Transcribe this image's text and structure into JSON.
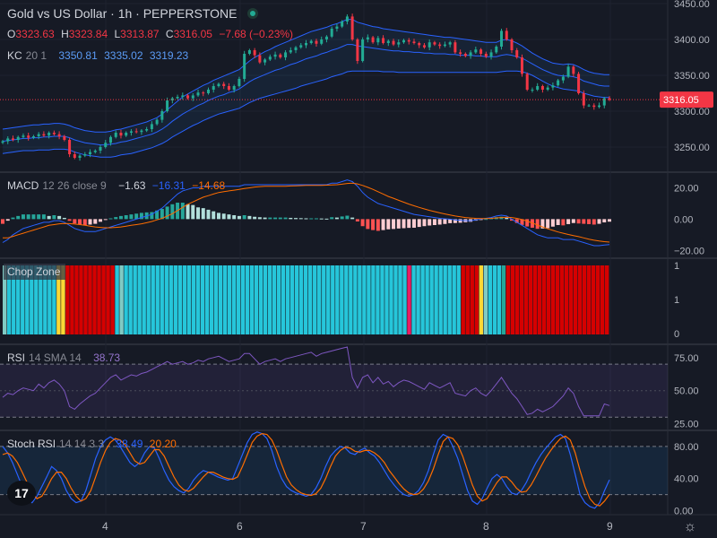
{
  "header": {
    "title": "Gold vs US Dollar · 1h · PEPPERSTONE",
    "ohlc": {
      "o_label": "O",
      "o": "3323.63",
      "h_label": "H",
      "h": "3323.84",
      "l_label": "L",
      "l": "3313.87",
      "c_label": "C",
      "c": "3316.05",
      "change": "−7.68 (−0.23%)"
    }
  },
  "kc_legend": {
    "name": "KC",
    "params": "20 1",
    "upper": "3350.81",
    "basis": "3335.02",
    "lower": "3319.23"
  },
  "macd_legend": {
    "name": "MACD",
    "params": "12 26 close 9",
    "hist": "−1.63",
    "macd": "−16.31",
    "signal": "−14.68"
  },
  "chop_legend": {
    "name": "Chop Zone"
  },
  "rsi_legend": {
    "name": "RSI",
    "params": "14 SMA 14",
    "value": "38.73"
  },
  "stoch_legend": {
    "name": "Stoch RSI",
    "params": "14 14 3 3",
    "k": "38.49",
    "d": "20.20"
  },
  "logo": {
    "text": "17"
  },
  "colors": {
    "up": "#22ab94",
    "down": "#f23645",
    "kc": "#2962ff",
    "macd": "#2962ff",
    "signal": "#ff6d00",
    "rsi": "#7e57c2",
    "stoch_k": "#2962ff",
    "stoch_d": "#ff6d00",
    "chop_turquoise": "#26c6da",
    "chop_red": "#d50000",
    "chop_yellow": "#fdd835",
    "chop_light_green": "#80cbc4",
    "chop_dark_green": "#26a69a",
    "chop_pink": "#e91e63"
  },
  "chart_data": [
    {
      "type": "candlestick",
      "title": "Gold vs US Dollar · 1h · PEPPERSTONE",
      "ylim": [
        3215,
        3455
      ],
      "y_ticks": [
        "3450.00",
        "3400.00",
        "3350.00",
        "3300.00",
        "3250.00"
      ],
      "x_ticks": [
        "4",
        "6",
        "7",
        "8",
        "9"
      ],
      "last_price": "3316.05",
      "close": [
        3258,
        3262,
        3260,
        3264,
        3266,
        3263,
        3265,
        3268,
        3266,
        3270,
        3268,
        3265,
        3260,
        3240,
        3235,
        3238,
        3240,
        3243,
        3245,
        3250,
        3256,
        3264,
        3270,
        3266,
        3270,
        3272,
        3271,
        3273,
        3275,
        3282,
        3288,
        3300,
        3315,
        3318,
        3320,
        3322,
        3318,
        3322,
        3326,
        3325,
        3330,
        3335,
        3338,
        3335,
        3330,
        3335,
        3345,
        3380,
        3385,
        3378,
        3368,
        3372,
        3376,
        3379,
        3375,
        3382,
        3385,
        3389,
        3392,
        3395,
        3398,
        3394,
        3400,
        3404,
        3415,
        3418,
        3425,
        3432,
        3400,
        3370,
        3400,
        3403,
        3396,
        3402,
        3395,
        3398,
        3393,
        3396,
        3399,
        3397,
        3395,
        3392,
        3389,
        3396,
        3393,
        3391,
        3393,
        3396,
        3382,
        3380,
        3377,
        3382,
        3386,
        3380,
        3376,
        3382,
        3390,
        3412,
        3400,
        3385,
        3375,
        3352,
        3330,
        3330,
        3335,
        3330,
        3333,
        3336,
        3343,
        3348,
        3362,
        3352,
        3325,
        3308,
        3308,
        3306,
        3308,
        3318,
        3316
      ],
      "kc_upper": [
        3275,
        3276,
        3277,
        3278,
        3279,
        3280,
        3281,
        3281,
        3282,
        3282,
        3283,
        3283,
        3282,
        3280,
        3277,
        3275,
        3273,
        3272,
        3271,
        3271,
        3271,
        3272,
        3274,
        3275,
        3277,
        3279,
        3281,
        3283,
        3285,
        3288,
        3291,
        3296,
        3302,
        3308,
        3314,
        3320,
        3324,
        3328,
        3332,
        3336,
        3339,
        3343,
        3346,
        3349,
        3352,
        3355,
        3358,
        3364,
        3370,
        3375,
        3379,
        3383,
        3386,
        3390,
        3393,
        3396,
        3399,
        3402,
        3405,
        3408,
        3411,
        3413,
        3415,
        3417,
        3420,
        3422,
        3425,
        3428,
        3428,
        3424,
        3422,
        3420,
        3418,
        3417,
        3415,
        3414,
        3413,
        3412,
        3411,
        3410,
        3409,
        3408,
        3407,
        3406,
        3405,
        3404,
        3403,
        3403,
        3402,
        3401,
        3400,
        3399,
        3398,
        3397,
        3396,
        3396,
        3396,
        3399,
        3400,
        3398,
        3395,
        3391,
        3386,
        3381,
        3377,
        3373,
        3370,
        3367,
        3366,
        3365,
        3366,
        3365,
        3362,
        3358,
        3355,
        3353,
        3352,
        3351,
        3351
      ],
      "kc_basis": [
        3258,
        3259,
        3260,
        3261,
        3262,
        3262,
        3263,
        3263,
        3264,
        3264,
        3265,
        3265,
        3265,
        3263,
        3260,
        3258,
        3256,
        3255,
        3254,
        3253,
        3253,
        3254,
        3255,
        3257,
        3258,
        3260,
        3262,
        3264,
        3266,
        3268,
        3271,
        3275,
        3280,
        3286,
        3291,
        3296,
        3300,
        3304,
        3308,
        3311,
        3315,
        3318,
        3321,
        3323,
        3326,
        3328,
        3331,
        3336,
        3341,
        3345,
        3348,
        3351,
        3354,
        3357,
        3359,
        3362,
        3365,
        3367,
        3370,
        3373,
        3375,
        3377,
        3380,
        3382,
        3385,
        3387,
        3390,
        3393,
        3393,
        3391,
        3390,
        3389,
        3388,
        3387,
        3386,
        3385,
        3384,
        3384,
        3383,
        3383,
        3382,
        3382,
        3381,
        3381,
        3380,
        3380,
        3380,
        3379,
        3379,
        3378,
        3378,
        3378,
        3377,
        3377,
        3376,
        3376,
        3376,
        3378,
        3379,
        3378,
        3376,
        3374,
        3370,
        3366,
        3362,
        3358,
        3355,
        3352,
        3350,
        3349,
        3349,
        3348,
        3346,
        3342,
        3340,
        3338,
        3336,
        3335,
        3335
      ],
      "kc_lower": [
        3241,
        3242,
        3243,
        3244,
        3245,
        3245,
        3245,
        3246,
        3246,
        3246,
        3247,
        3247,
        3247,
        3246,
        3243,
        3241,
        3239,
        3238,
        3237,
        3236,
        3236,
        3236,
        3237,
        3239,
        3240,
        3241,
        3243,
        3245,
        3247,
        3249,
        3252,
        3255,
        3259,
        3264,
        3268,
        3272,
        3276,
        3280,
        3283,
        3287,
        3290,
        3293,
        3296,
        3298,
        3300,
        3302,
        3304,
        3308,
        3312,
        3315,
        3318,
        3320,
        3322,
        3324,
        3326,
        3328,
        3330,
        3332,
        3335,
        3337,
        3339,
        3341,
        3343,
        3345,
        3348,
        3350,
        3352,
        3355,
        3356,
        3356,
        3356,
        3356,
        3356,
        3356,
        3355,
        3355,
        3355,
        3354,
        3354,
        3354,
        3354,
        3354,
        3354,
        3354,
        3354,
        3354,
        3354,
        3354,
        3354,
        3354,
        3354,
        3354,
        3354,
        3354,
        3354,
        3354,
        3354,
        3355,
        3356,
        3356,
        3356,
        3355,
        3353,
        3350,
        3346,
        3342,
        3338,
        3335,
        3333,
        3331,
        3330,
        3329,
        3328,
        3325,
        3323,
        3321,
        3320,
        3319,
        3319
      ]
    },
    {
      "type": "line",
      "title": "MACD 12 26 close 9",
      "ylim": [
        -25,
        30
      ],
      "y_ticks": [
        "20.00",
        "0.00",
        "−20.00"
      ],
      "macd": [
        -15,
        -13,
        -10,
        -8,
        -6,
        -5,
        -4,
        -3,
        -2,
        -2,
        -1,
        -1,
        -2,
        -4,
        -6,
        -7,
        -8,
        -8,
        -8,
        -7,
        -6,
        -5,
        -4,
        -3,
        -2,
        -1,
        0,
        1,
        2,
        3,
        5,
        7,
        10,
        13,
        16,
        18,
        19,
        20,
        20,
        21,
        21,
        21,
        21,
        21,
        21,
        21,
        21,
        22,
        22,
        22,
        22,
        22,
        22,
        22,
        22,
        22,
        22,
        22,
        22,
        22,
        22,
        22,
        22,
        22,
        23,
        23,
        24,
        25,
        24,
        21,
        17,
        14,
        12,
        10,
        9,
        8,
        7,
        6,
        5,
        4,
        3,
        2.5,
        2,
        1.5,
        1,
        0.5,
        0.2,
        0,
        -0.5,
        -0.8,
        -1,
        -1,
        -0.5,
        0,
        0.5,
        1,
        2,
        2.5,
        2,
        0,
        -2,
        -4,
        -6,
        -8,
        -10,
        -11,
        -12,
        -12,
        -12,
        -13,
        -13,
        -13,
        -14,
        -15,
        -16,
        -17,
        -17,
        -16.5,
        -16.31
      ],
      "signal": [
        -12,
        -12,
        -11,
        -10,
        -9,
        -8,
        -7,
        -6,
        -5,
        -4,
        -3.5,
        -3,
        -2.8,
        -2.9,
        -3.2,
        -3.5,
        -4,
        -4.5,
        -5,
        -5.3,
        -5.5,
        -5.5,
        -5.3,
        -5,
        -4.5,
        -4,
        -3.5,
        -3,
        -2.3,
        -1.5,
        -0.5,
        0.5,
        2,
        3.5,
        5.5,
        7.5,
        9.5,
        11,
        12.5,
        14,
        15,
        16,
        17,
        17.5,
        18,
        18.5,
        19,
        19.5,
        20,
        20.5,
        20.8,
        21,
        21,
        21,
        21,
        21,
        21.2,
        21.3,
        21.4,
        21.5,
        21.5,
        21.5,
        21.6,
        21.7,
        21.8,
        22,
        22.3,
        22.8,
        23,
        22.5,
        21.5,
        20.3,
        19,
        17.5,
        16,
        14.5,
        13.3,
        12,
        10.8,
        9.6,
        8.5,
        7.5,
        6.5,
        5.6,
        4.8,
        4,
        3.3,
        2.6,
        2,
        1.5,
        1,
        0.7,
        0.5,
        0.4,
        0.4,
        0.5,
        0.8,
        1,
        1.2,
        1,
        0.5,
        -0.3,
        -1.3,
        -2.5,
        -3.8,
        -5,
        -6.2,
        -7.2,
        -8.2,
        -9,
        -9.8,
        -10.5,
        -11.2,
        -12,
        -12.8,
        -13.5,
        -14,
        -14.4,
        -14.68
      ]
    },
    {
      "type": "heatmap",
      "title": "Chop Zone",
      "y_ticks": [
        "1",
        "1",
        "0"
      ],
      "zones": [
        "light_green",
        "turquoise",
        "turquoise",
        "turquoise",
        "turquoise",
        "turquoise",
        "turquoise",
        "turquoise",
        "turquoise",
        "turquoise",
        "turquoise",
        "turquoise",
        "yellow",
        "yellow",
        "red",
        "red",
        "red",
        "red",
        "red",
        "red",
        "red",
        "red",
        "red",
        "red",
        "red",
        "turquoise",
        "light_green",
        "turquoise",
        "turquoise",
        "turquoise",
        "turquoise",
        "turquoise",
        "turquoise",
        "turquoise",
        "turquoise",
        "turquoise",
        "turquoise",
        "turquoise",
        "turquoise",
        "turquoise",
        "turquoise",
        "turquoise",
        "turquoise",
        "turquoise",
        "turquoise",
        "turquoise",
        "turquoise",
        "turquoise",
        "turquoise",
        "turquoise",
        "turquoise",
        "turquoise",
        "turquoise",
        "turquoise",
        "turquoise",
        "turquoise",
        "turquoise",
        "turquoise",
        "turquoise",
        "turquoise",
        "turquoise",
        "turquoise",
        "turquoise",
        "turquoise",
        "turquoise",
        "turquoise",
        "turquoise",
        "turquoise",
        "turquoise",
        "turquoise",
        "turquoise",
        "turquoise",
        "turquoise",
        "turquoise",
        "turquoise",
        "turquoise",
        "turquoise",
        "turquoise",
        "turquoise",
        "turquoise",
        "turquoise",
        "turquoise",
        "turquoise",
        "turquoise",
        "turquoise",
        "turquoise",
        "turquoise",
        "turquoise",
        "turquoise",
        "turquoise",
        "pink",
        "turquoise",
        "turquoise",
        "turquoise",
        "turquoise",
        "turquoise",
        "turquoise",
        "turquoise",
        "turquoise",
        "turquoise",
        "turquoise",
        "turquoise",
        "red",
        "red",
        "red",
        "red",
        "yellow",
        "light_green",
        "turquoise",
        "turquoise",
        "turquoise",
        "dark_green",
        "red",
        "red",
        "red",
        "red",
        "red",
        "red",
        "red",
        "red",
        "red",
        "red",
        "red",
        "red",
        "red",
        "red",
        "red",
        "red",
        "red",
        "red",
        "red",
        "red",
        "red",
        "red",
        "red"
      ]
    },
    {
      "type": "line",
      "title": "RSI 14 SMA 14",
      "ylim": [
        20,
        85
      ],
      "y_ticks": [
        "75.00",
        "50.00",
        "25.00"
      ],
      "bands": [
        70,
        30
      ],
      "rsi": [
        45,
        48,
        47,
        50,
        52,
        51,
        50,
        55,
        52,
        56,
        58,
        55,
        50,
        38,
        36,
        40,
        43,
        46,
        48,
        52,
        56,
        60,
        62,
        58,
        60,
        62,
        61,
        63,
        64,
        66,
        68,
        70,
        72,
        70,
        71,
        72,
        70,
        71,
        73,
        72,
        74,
        75,
        76,
        74,
        72,
        73,
        74,
        78,
        78,
        74,
        70,
        72,
        73,
        74,
        72,
        74,
        75,
        76,
        77,
        78,
        79,
        76,
        78,
        79,
        80,
        81,
        82,
        83,
        60,
        52,
        60,
        62,
        56,
        60,
        55,
        57,
        53,
        56,
        58,
        57,
        55,
        53,
        51,
        56,
        54,
        52,
        54,
        56,
        48,
        47,
        46,
        50,
        52,
        48,
        46,
        50,
        55,
        60,
        54,
        48,
        44,
        38,
        32,
        33,
        36,
        34,
        36,
        38,
        42,
        46,
        52,
        48,
        38,
        31,
        31,
        31,
        31,
        40,
        38.73
      ]
    },
    {
      "type": "line",
      "title": "Stoch RSI 14 14 3 3",
      "ylim": [
        -5,
        100
      ],
      "y_ticks": [
        "80.00",
        "40.00",
        "0.00"
      ],
      "bands": [
        80,
        20
      ],
      "k": [
        80,
        72,
        60,
        45,
        30,
        15,
        10,
        18,
        30,
        42,
        55,
        50,
        40,
        25,
        15,
        10,
        12,
        25,
        45,
        65,
        80,
        88,
        92,
        88,
        80,
        70,
        60,
        55,
        60,
        72,
        80,
        78,
        65,
        50,
        38,
        30,
        25,
        22,
        28,
        38,
        45,
        50,
        48,
        45,
        42,
        40,
        38,
        40,
        55,
        70,
        85,
        95,
        98,
        96,
        90,
        75,
        55,
        40,
        30,
        25,
        22,
        20,
        18,
        20,
        28,
        40,
        55,
        68,
        75,
        80,
        78,
        72,
        70,
        75,
        78,
        72,
        68,
        60,
        50,
        40,
        32,
        25,
        20,
        18,
        20,
        25,
        35,
        50,
        70,
        88,
        95,
        92,
        80,
        65,
        45,
        25,
        12,
        8,
        15,
        28,
        40,
        45,
        40,
        30,
        22,
        20,
        25,
        35,
        48,
        60,
        70,
        78,
        85,
        92,
        95,
        90,
        70,
        45,
        20,
        10,
        5,
        3,
        10,
        25,
        38.49
      ],
      "d": [
        70,
        72,
        68,
        60,
        48,
        35,
        22,
        15,
        18,
        28,
        40,
        48,
        48,
        40,
        28,
        18,
        12,
        15,
        25,
        42,
        60,
        75,
        85,
        90,
        88,
        82,
        72,
        62,
        58,
        60,
        68,
        76,
        76,
        68,
        55,
        42,
        32,
        26,
        24,
        28,
        35,
        42,
        48,
        48,
        45,
        42,
        40,
        39,
        42,
        55,
        70,
        85,
        93,
        96,
        95,
        88,
        75,
        58,
        42,
        32,
        26,
        22,
        20,
        19,
        21,
        28,
        40,
        55,
        68,
        75,
        79,
        78,
        74,
        73,
        75,
        75,
        72,
        67,
        60,
        50,
        42,
        34,
        27,
        22,
        20,
        21,
        27,
        37,
        52,
        70,
        86,
        92,
        90,
        82,
        68,
        50,
        32,
        18,
        12,
        15,
        25,
        35,
        42,
        42,
        36,
        28,
        23,
        24,
        32,
        43,
        55,
        66,
        75,
        83,
        90,
        93,
        88,
        72,
        50,
        30,
        15,
        8,
        6,
        12,
        20.2
      ]
    }
  ]
}
